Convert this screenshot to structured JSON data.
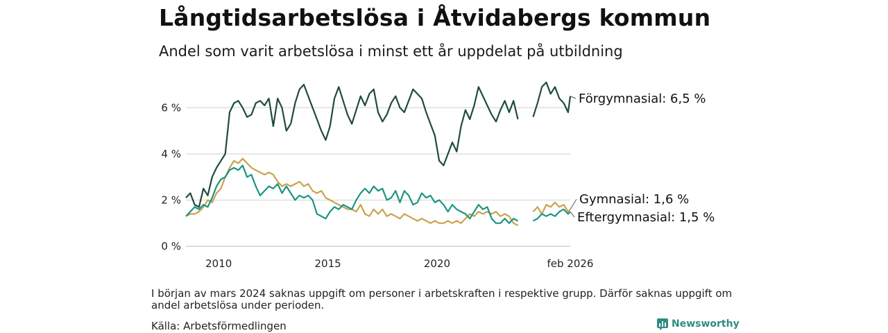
{
  "title": "Långtidsarbetslösa i Åtvidabergs kommun",
  "subtitle": "Andel som varit arbetslösa i minst ett år uppdelat på utbildning",
  "note": "I början av mars 2024 saknas uppgift om personer i arbetskraften i respektive grupp. Därför saknas uppgift om andel arbetslösa under perioden.",
  "source": "Källa: Arbetsförmedlingen",
  "brand": "Newsworthy",
  "colors": {
    "forgymnasial": "#1f4a3f",
    "gymnasial": "#c9a24e",
    "eftergymnasial": "#1a9482",
    "brand": "#2f8c82",
    "grid": "#d9d9d9"
  },
  "chart_data": {
    "type": "line",
    "title": "Långtidsarbetslösa i Åtvidabergs kommun",
    "xlabel": "",
    "ylabel": "",
    "ylim": [
      0,
      7
    ],
    "yticks": [
      0,
      2,
      4,
      6
    ],
    "ytick_labels": [
      "0 %",
      "2 %",
      "4 %",
      "6 %"
    ],
    "xlim": [
      2008.5,
      2026.1
    ],
    "xticks": [
      2010,
      2015,
      2020,
      2026.1
    ],
    "xtick_labels": [
      "2010",
      "2015",
      "2020",
      "feb 2026"
    ],
    "gap": [
      2023.75,
      2024.4
    ],
    "series": [
      {
        "name": "Förgymnasial",
        "end_label": "Förgymnasial: 6,5 %",
        "color_key": "forgymnasial",
        "points": [
          [
            2008.5,
            2.1
          ],
          [
            2008.7,
            2.3
          ],
          [
            2008.9,
            1.8
          ],
          [
            2009.1,
            1.7
          ],
          [
            2009.3,
            2.5
          ],
          [
            2009.5,
            2.2
          ],
          [
            2009.7,
            3.0
          ],
          [
            2009.9,
            3.4
          ],
          [
            2010.1,
            3.7
          ],
          [
            2010.3,
            4.0
          ],
          [
            2010.5,
            5.8
          ],
          [
            2010.7,
            6.2
          ],
          [
            2010.9,
            6.3
          ],
          [
            2011.1,
            6.0
          ],
          [
            2011.3,
            5.6
          ],
          [
            2011.5,
            5.7
          ],
          [
            2011.7,
            6.2
          ],
          [
            2011.9,
            6.3
          ],
          [
            2012.1,
            6.1
          ],
          [
            2012.3,
            6.4
          ],
          [
            2012.5,
            5.2
          ],
          [
            2012.7,
            6.4
          ],
          [
            2012.9,
            6.0
          ],
          [
            2013.1,
            5.0
          ],
          [
            2013.3,
            5.3
          ],
          [
            2013.5,
            6.2
          ],
          [
            2013.7,
            6.8
          ],
          [
            2013.9,
            7.0
          ],
          [
            2014.1,
            6.5
          ],
          [
            2014.3,
            6.0
          ],
          [
            2014.5,
            5.5
          ],
          [
            2014.7,
            5.0
          ],
          [
            2014.9,
            4.6
          ],
          [
            2015.1,
            5.2
          ],
          [
            2015.3,
            6.4
          ],
          [
            2015.5,
            6.9
          ],
          [
            2015.7,
            6.3
          ],
          [
            2015.9,
            5.7
          ],
          [
            2016.1,
            5.3
          ],
          [
            2016.3,
            5.9
          ],
          [
            2016.5,
            6.5
          ],
          [
            2016.7,
            6.1
          ],
          [
            2016.9,
            6.6
          ],
          [
            2017.1,
            6.8
          ],
          [
            2017.3,
            5.8
          ],
          [
            2017.5,
            5.4
          ],
          [
            2017.7,
            5.7
          ],
          [
            2017.9,
            6.2
          ],
          [
            2018.1,
            6.5
          ],
          [
            2018.3,
            6.0
          ],
          [
            2018.5,
            5.8
          ],
          [
            2018.7,
            6.3
          ],
          [
            2018.9,
            6.8
          ],
          [
            2019.1,
            6.6
          ],
          [
            2019.3,
            6.4
          ],
          [
            2019.5,
            5.8
          ],
          [
            2019.7,
            5.3
          ],
          [
            2019.9,
            4.8
          ],
          [
            2020.1,
            3.7
          ],
          [
            2020.3,
            3.5
          ],
          [
            2020.5,
            4.0
          ],
          [
            2020.7,
            4.5
          ],
          [
            2020.9,
            4.1
          ],
          [
            2021.1,
            5.2
          ],
          [
            2021.3,
            5.9
          ],
          [
            2021.5,
            5.5
          ],
          [
            2021.7,
            6.1
          ],
          [
            2021.9,
            6.9
          ],
          [
            2022.1,
            6.5
          ],
          [
            2022.3,
            6.1
          ],
          [
            2022.5,
            5.7
          ],
          [
            2022.7,
            5.4
          ],
          [
            2022.9,
            5.9
          ],
          [
            2023.1,
            6.3
          ],
          [
            2023.3,
            5.8
          ],
          [
            2023.5,
            6.3
          ],
          [
            2023.7,
            5.5
          ],
          [
            2024.4,
            5.6
          ],
          [
            2024.6,
            6.2
          ],
          [
            2024.8,
            6.9
          ],
          [
            2025.0,
            7.1
          ],
          [
            2025.2,
            6.6
          ],
          [
            2025.4,
            6.9
          ],
          [
            2025.6,
            6.4
          ],
          [
            2025.8,
            6.2
          ],
          [
            2026.0,
            5.8
          ],
          [
            2026.1,
            6.5
          ]
        ]
      },
      {
        "name": "Gymnasial",
        "end_label": "Gymnasial: 1,6 %",
        "color_key": "gymnasial",
        "points": [
          [
            2008.5,
            1.3
          ],
          [
            2008.7,
            1.4
          ],
          [
            2008.9,
            1.4
          ],
          [
            2009.1,
            1.5
          ],
          [
            2009.3,
            1.7
          ],
          [
            2009.5,
            2.0
          ],
          [
            2009.7,
            1.9
          ],
          [
            2009.9,
            2.3
          ],
          [
            2010.1,
            2.5
          ],
          [
            2010.3,
            3.0
          ],
          [
            2010.5,
            3.4
          ],
          [
            2010.7,
            3.7
          ],
          [
            2010.9,
            3.6
          ],
          [
            2011.1,
            3.8
          ],
          [
            2011.3,
            3.6
          ],
          [
            2011.5,
            3.4
          ],
          [
            2011.7,
            3.3
          ],
          [
            2011.9,
            3.2
          ],
          [
            2012.1,
            3.1
          ],
          [
            2012.3,
            3.2
          ],
          [
            2012.5,
            3.1
          ],
          [
            2012.7,
            2.8
          ],
          [
            2012.9,
            2.6
          ],
          [
            2013.1,
            2.7
          ],
          [
            2013.3,
            2.6
          ],
          [
            2013.5,
            2.7
          ],
          [
            2013.7,
            2.8
          ],
          [
            2013.9,
            2.6
          ],
          [
            2014.1,
            2.7
          ],
          [
            2014.3,
            2.4
          ],
          [
            2014.5,
            2.3
          ],
          [
            2014.7,
            2.4
          ],
          [
            2014.9,
            2.1
          ],
          [
            2015.1,
            2.0
          ],
          [
            2015.3,
            1.9
          ],
          [
            2015.5,
            1.8
          ],
          [
            2015.7,
            1.7
          ],
          [
            2015.9,
            1.6
          ],
          [
            2016.1,
            1.6
          ],
          [
            2016.3,
            1.5
          ],
          [
            2016.5,
            1.8
          ],
          [
            2016.7,
            1.4
          ],
          [
            2016.9,
            1.3
          ],
          [
            2017.1,
            1.6
          ],
          [
            2017.3,
            1.4
          ],
          [
            2017.5,
            1.6
          ],
          [
            2017.7,
            1.3
          ],
          [
            2017.9,
            1.4
          ],
          [
            2018.1,
            1.3
          ],
          [
            2018.3,
            1.2
          ],
          [
            2018.5,
            1.4
          ],
          [
            2018.7,
            1.3
          ],
          [
            2018.9,
            1.2
          ],
          [
            2019.1,
            1.1
          ],
          [
            2019.3,
            1.2
          ],
          [
            2019.5,
            1.1
          ],
          [
            2019.7,
            1.0
          ],
          [
            2019.9,
            1.1
          ],
          [
            2020.1,
            1.0
          ],
          [
            2020.3,
            1.0
          ],
          [
            2020.5,
            1.1
          ],
          [
            2020.7,
            1.0
          ],
          [
            2020.9,
            1.1
          ],
          [
            2021.1,
            1.0
          ],
          [
            2021.3,
            1.2
          ],
          [
            2021.5,
            1.4
          ],
          [
            2021.7,
            1.3
          ],
          [
            2021.9,
            1.5
          ],
          [
            2022.1,
            1.4
          ],
          [
            2022.3,
            1.5
          ],
          [
            2022.5,
            1.4
          ],
          [
            2022.7,
            1.5
          ],
          [
            2022.9,
            1.3
          ],
          [
            2023.1,
            1.4
          ],
          [
            2023.3,
            1.3
          ],
          [
            2023.5,
            1.0
          ],
          [
            2023.7,
            0.9
          ],
          [
            2024.4,
            1.5
          ],
          [
            2024.6,
            1.7
          ],
          [
            2024.8,
            1.4
          ],
          [
            2025.0,
            1.8
          ],
          [
            2025.2,
            1.7
          ],
          [
            2025.4,
            1.9
          ],
          [
            2025.6,
            1.7
          ],
          [
            2025.8,
            1.8
          ],
          [
            2026.0,
            1.5
          ],
          [
            2026.1,
            1.6
          ]
        ]
      },
      {
        "name": "Eftergymnasial",
        "end_label": "Eftergymnasial: 1,5 %",
        "color_key": "eftergymnasial",
        "points": [
          [
            2008.5,
            1.3
          ],
          [
            2008.7,
            1.5
          ],
          [
            2008.9,
            1.7
          ],
          [
            2009.1,
            1.6
          ],
          [
            2009.3,
            1.8
          ],
          [
            2009.5,
            1.7
          ],
          [
            2009.7,
            2.1
          ],
          [
            2009.9,
            2.6
          ],
          [
            2010.1,
            2.9
          ],
          [
            2010.3,
            3.0
          ],
          [
            2010.5,
            3.3
          ],
          [
            2010.7,
            3.4
          ],
          [
            2010.9,
            3.3
          ],
          [
            2011.1,
            3.5
          ],
          [
            2011.3,
            3.0
          ],
          [
            2011.5,
            3.1
          ],
          [
            2011.7,
            2.6
          ],
          [
            2011.9,
            2.2
          ],
          [
            2012.1,
            2.4
          ],
          [
            2012.3,
            2.6
          ],
          [
            2012.5,
            2.5
          ],
          [
            2012.7,
            2.7
          ],
          [
            2012.9,
            2.3
          ],
          [
            2013.1,
            2.6
          ],
          [
            2013.3,
            2.3
          ],
          [
            2013.5,
            2.0
          ],
          [
            2013.7,
            2.2
          ],
          [
            2013.9,
            2.1
          ],
          [
            2014.1,
            2.2
          ],
          [
            2014.3,
            2.0
          ],
          [
            2014.5,
            1.4
          ],
          [
            2014.7,
            1.3
          ],
          [
            2014.9,
            1.2
          ],
          [
            2015.1,
            1.5
          ],
          [
            2015.3,
            1.7
          ],
          [
            2015.5,
            1.6
          ],
          [
            2015.7,
            1.8
          ],
          [
            2015.9,
            1.7
          ],
          [
            2016.1,
            1.6
          ],
          [
            2016.3,
            2.0
          ],
          [
            2016.5,
            2.3
          ],
          [
            2016.7,
            2.5
          ],
          [
            2016.9,
            2.3
          ],
          [
            2017.1,
            2.6
          ],
          [
            2017.3,
            2.4
          ],
          [
            2017.5,
            2.5
          ],
          [
            2017.7,
            2.0
          ],
          [
            2017.9,
            2.1
          ],
          [
            2018.1,
            2.4
          ],
          [
            2018.3,
            1.9
          ],
          [
            2018.5,
            2.4
          ],
          [
            2018.7,
            2.2
          ],
          [
            2018.9,
            1.8
          ],
          [
            2019.1,
            1.9
          ],
          [
            2019.3,
            2.3
          ],
          [
            2019.5,
            2.1
          ],
          [
            2019.7,
            2.2
          ],
          [
            2019.9,
            1.9
          ],
          [
            2020.1,
            2.0
          ],
          [
            2020.3,
            1.8
          ],
          [
            2020.5,
            1.5
          ],
          [
            2020.7,
            1.8
          ],
          [
            2020.9,
            1.6
          ],
          [
            2021.1,
            1.5
          ],
          [
            2021.3,
            1.4
          ],
          [
            2021.5,
            1.2
          ],
          [
            2021.7,
            1.5
          ],
          [
            2021.9,
            1.8
          ],
          [
            2022.1,
            1.6
          ],
          [
            2022.3,
            1.7
          ],
          [
            2022.5,
            1.2
          ],
          [
            2022.7,
            1.0
          ],
          [
            2022.9,
            1.0
          ],
          [
            2023.1,
            1.2
          ],
          [
            2023.3,
            1.0
          ],
          [
            2023.5,
            1.2
          ],
          [
            2023.7,
            1.1
          ],
          [
            2024.4,
            1.1
          ],
          [
            2024.6,
            1.2
          ],
          [
            2024.8,
            1.4
          ],
          [
            2025.0,
            1.3
          ],
          [
            2025.2,
            1.4
          ],
          [
            2025.4,
            1.3
          ],
          [
            2025.6,
            1.5
          ],
          [
            2025.8,
            1.6
          ],
          [
            2026.0,
            1.4
          ],
          [
            2026.1,
            1.5
          ]
        ]
      }
    ]
  }
}
